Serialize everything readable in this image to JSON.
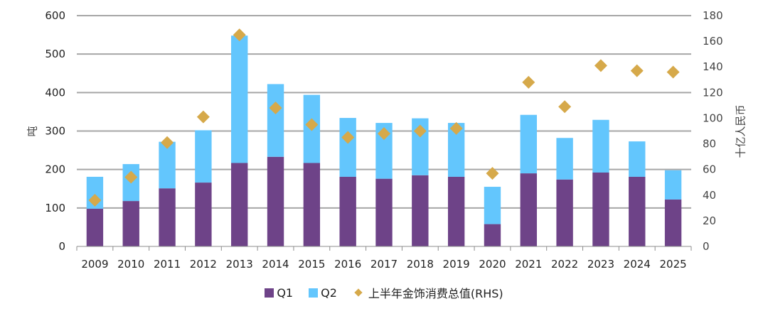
{
  "chart_data": {
    "type": "bar",
    "stacked": true,
    "title": "",
    "categories": [
      "2009",
      "2010",
      "2011",
      "2012",
      "2013",
      "2014",
      "2015",
      "2016",
      "2017",
      "2018",
      "2019",
      "2020",
      "2021",
      "2022",
      "2023",
      "2024",
      "2025"
    ],
    "series": [
      {
        "name": "Q1",
        "axis": "left",
        "type": "bar",
        "color": "#6e4388",
        "values": [
          98,
          118,
          151,
          166,
          217,
          233,
          217,
          181,
          176,
          185,
          181,
          58,
          190,
          174,
          192,
          181,
          122
        ]
      },
      {
        "name": "Q2",
        "axis": "left",
        "type": "bar",
        "color": "#63c6fd",
        "values": [
          83,
          96,
          121,
          136,
          331,
          189,
          177,
          153,
          145,
          148,
          140,
          97,
          152,
          108,
          137,
          92,
          76
        ]
      },
      {
        "name": "上半年金饰消费总值(RHS)",
        "axis": "right",
        "type": "scatter",
        "marker": "diamond",
        "color": "#d6a94a",
        "values": [
          36,
          54,
          81,
          101,
          165,
          108,
          95,
          85,
          88,
          90,
          92,
          57,
          128,
          109,
          141,
          137,
          136
        ]
      }
    ],
    "ylabel": "吨",
    "ylim": [
      0,
      600
    ],
    "yticks": [
      "0",
      "100",
      "200",
      "300",
      "400",
      "500",
      "600"
    ],
    "y2label": "十亿人民币",
    "y2lim": [
      0,
      180
    ],
    "y2ticks": [
      "0",
      "20",
      "40",
      "60",
      "80",
      "100",
      "120",
      "140",
      "160",
      "180"
    ],
    "grid": true,
    "legend_position": "bottom",
    "legend": [
      "Q1",
      "Q2",
      "上半年金饰消费总值(RHS)"
    ]
  }
}
